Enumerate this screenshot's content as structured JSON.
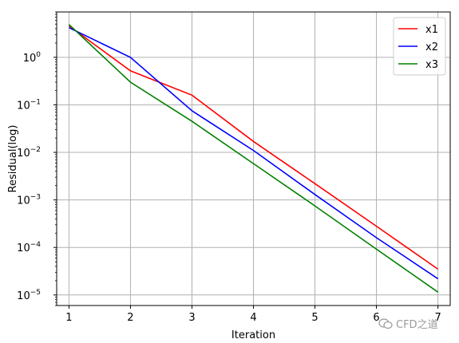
{
  "chart_data": {
    "type": "line",
    "xlabel": "Iteration",
    "ylabel": "Residual(log)",
    "x": [
      1,
      2,
      3,
      4,
      5,
      6,
      7
    ],
    "xlim": [
      0.8,
      7.2
    ],
    "ylim": [
      6e-06,
      9
    ],
    "yscale": "log",
    "grid": true,
    "legend_position": "top-right",
    "y_tick_labels": [
      {
        "base": "10",
        "exp": "0",
        "value": 1
      },
      {
        "base": "10",
        "exp": "−1",
        "value": 0.1
      },
      {
        "base": "10",
        "exp": "−2",
        "value": 0.01
      },
      {
        "base": "10",
        "exp": "−3",
        "value": 0.001
      },
      {
        "base": "10",
        "exp": "−4",
        "value": 0.0001
      },
      {
        "base": "10",
        "exp": "−5",
        "value": 1e-05
      }
    ],
    "series": [
      {
        "name": "x1",
        "color": "#ff0000",
        "values": [
          4.6,
          0.52,
          0.16,
          0.017,
          0.0022,
          0.00028,
          3.5e-05
        ]
      },
      {
        "name": "x2",
        "color": "#0000ff",
        "values": [
          4.2,
          1.0,
          0.075,
          0.011,
          0.0013,
          0.00016,
          2.2e-05
        ]
      },
      {
        "name": "x3",
        "color": "#008000",
        "values": [
          4.9,
          0.3,
          0.045,
          0.0058,
          0.00075,
          9.2e-05,
          1.15e-05
        ]
      }
    ]
  },
  "watermark": {
    "text": "CFD之道",
    "icon": "wechat-icon"
  }
}
